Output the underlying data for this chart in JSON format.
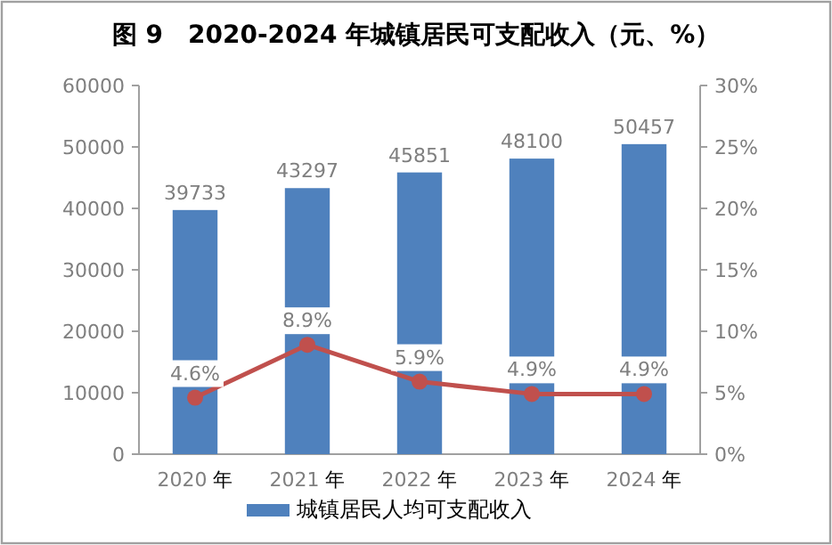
{
  "chart_data": {
    "type": "bar",
    "title": "图 9　2020-2024 年城镇居民可支配收入（元、%）",
    "categories": [
      "2020 年",
      "2021 年",
      "2022 年",
      "2023 年",
      "2024 年"
    ],
    "series": [
      {
        "name": "城镇居民人均可支配收入",
        "type": "bar",
        "color": "#4f81bd",
        "values": [
          39733,
          43297,
          45851,
          48100,
          50457
        ]
      },
      {
        "type": "line",
        "axis": "y2",
        "color": "#c0504d",
        "marker": "circle",
        "values": [
          4.6,
          8.9,
          5.9,
          4.9,
          4.9
        ],
        "value_labels": [
          "4.6%",
          "8.9%",
          "5.9%",
          "4.9%",
          "4.9%"
        ]
      }
    ],
    "ylim": [
      0,
      60000
    ],
    "yticks": [
      0,
      10000,
      20000,
      30000,
      40000,
      50000,
      60000
    ],
    "y2lim": [
      0,
      30
    ],
    "y2ticks": [
      {
        "value": 0,
        "label": "0%"
      },
      {
        "value": 5,
        "label": "5%"
      },
      {
        "value": 10,
        "label": "10%"
      },
      {
        "value": 15,
        "label": "15%"
      },
      {
        "value": 20,
        "label": "20%"
      },
      {
        "value": 25,
        "label": "25%"
      },
      {
        "value": 30,
        "label": "30%"
      }
    ],
    "data_labels": true,
    "legend": "bottom",
    "grid": false
  }
}
